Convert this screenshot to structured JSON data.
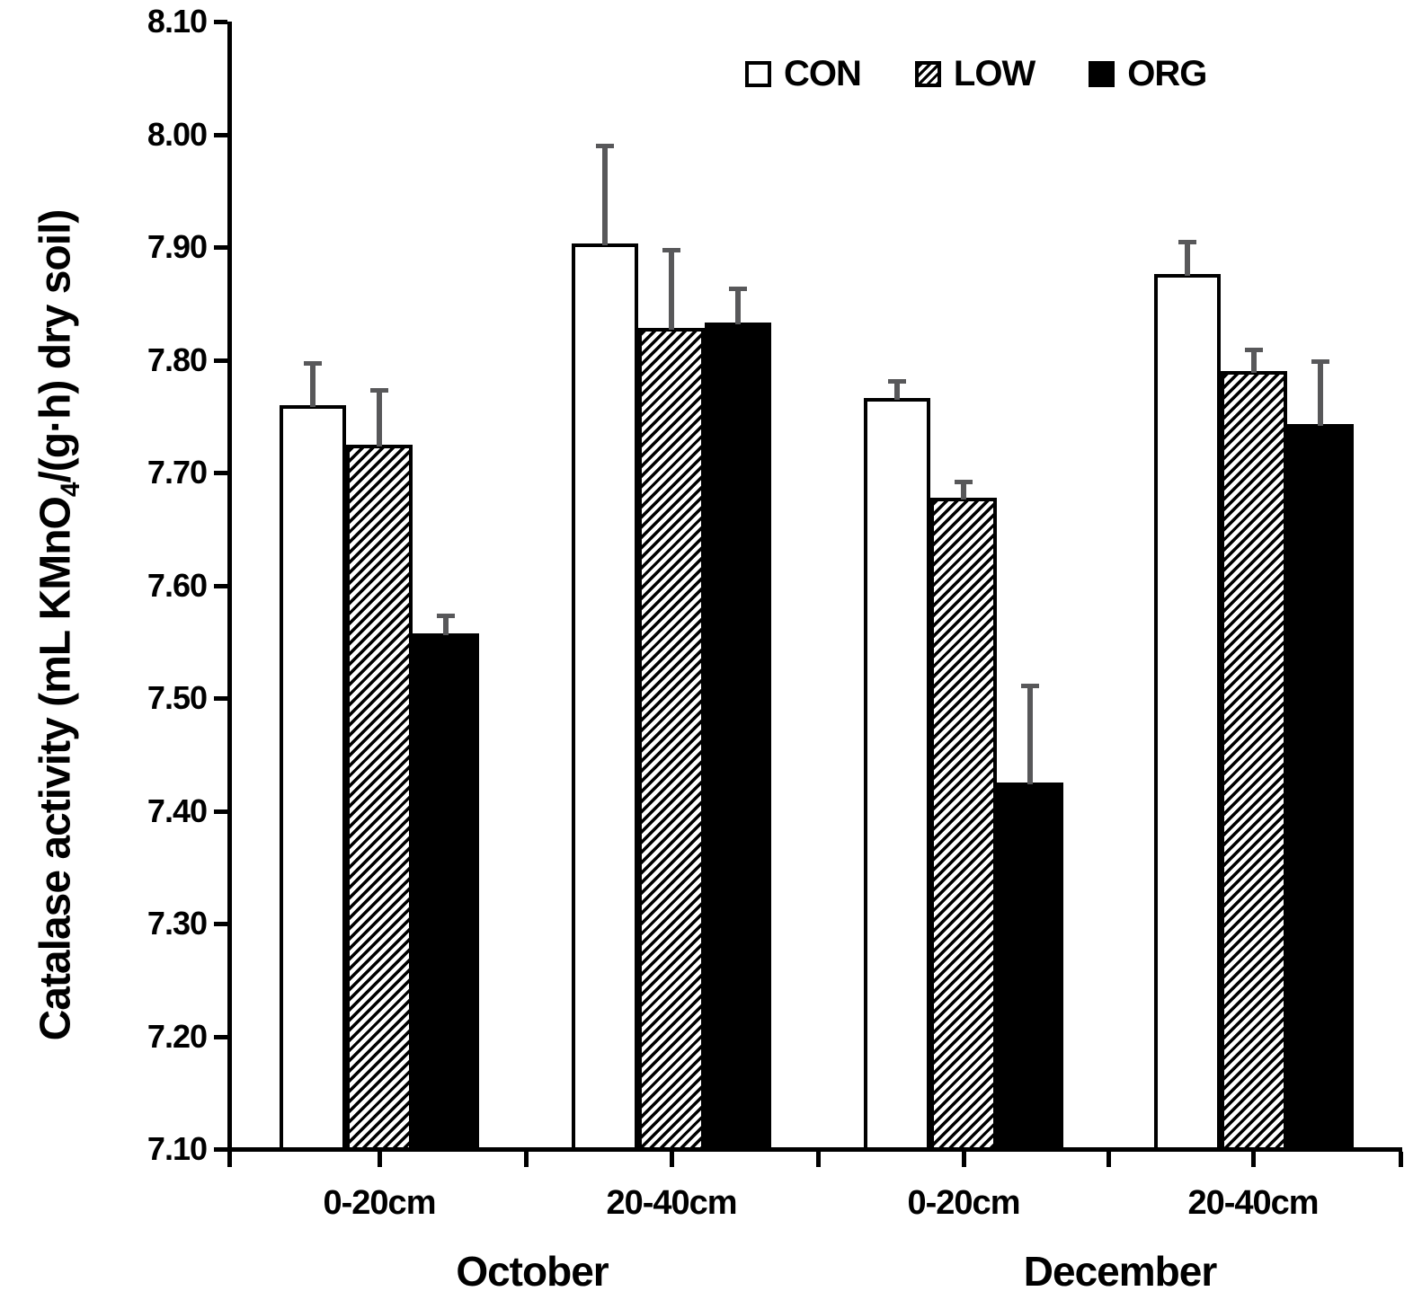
{
  "chart_data": {
    "type": "bar",
    "title": "",
    "ylabel": {
      "prefix": "Catalase activity  (mL KMnO",
      "sub": "4",
      "suffix": "/(g·h) dry soil)"
    },
    "ylabel_text": "Catalase activity (mL KMnO4/(g·h) dry soil)",
    "xlabel": "",
    "ylim": [
      7.1,
      8.1
    ],
    "ytick_step": 0.1,
    "ytick_labels": [
      "8.10",
      "8.00",
      "7.90",
      "7.80",
      "7.70",
      "7.60",
      "7.50",
      "7.40",
      "7.30",
      "7.20",
      "7.10"
    ],
    "grid": false,
    "legend_position": "top-center",
    "categories": [
      "0-20cm",
      "20-40cm",
      "0-20cm",
      "20-40cm"
    ],
    "group_labels": [
      "October",
      "December"
    ],
    "series": [
      {
        "name": "CON",
        "pattern": "white",
        "values": [
          7.76,
          7.903,
          7.766,
          7.876
        ],
        "errors": [
          0.037,
          0.087,
          0.015,
          0.029
        ]
      },
      {
        "name": "LOW",
        "pattern": "hatch",
        "values": [
          7.725,
          7.828,
          7.678,
          7.79
        ],
        "errors": [
          0.048,
          0.07,
          0.014,
          0.019
        ]
      },
      {
        "name": "ORG",
        "pattern": "black",
        "values": [
          7.557,
          7.833,
          7.425,
          7.743
        ],
        "errors": [
          0.016,
          0.03,
          0.086,
          0.056
        ]
      }
    ],
    "legend": {
      "items": [
        {
          "label": "CON",
          "pattern": "white"
        },
        {
          "label": "LOW",
          "pattern": "hatch"
        },
        {
          "label": "ORG",
          "pattern": "black"
        }
      ]
    },
    "colors": {
      "bar_edge": "#000000",
      "bar_fill_con": "#ffffff",
      "bar_fill_org": "#000000",
      "error_bar": "#58585a",
      "text": "#000000",
      "background": "#ffffff"
    }
  }
}
